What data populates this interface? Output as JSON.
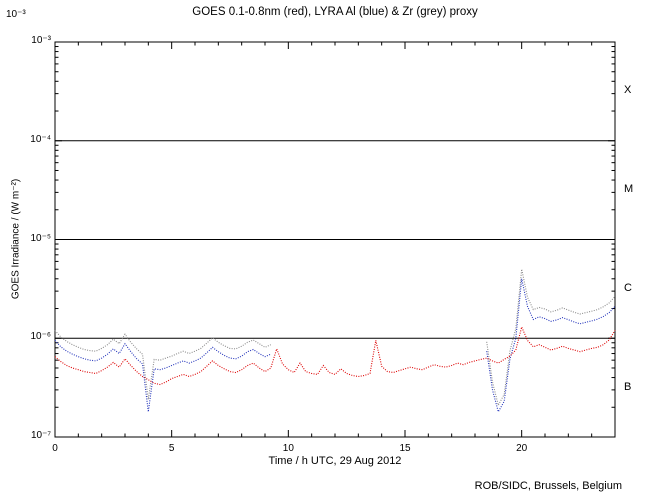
{
  "title": "GOES 0.1-0.8nm (red), LYRA Al (blue) & Zr (grey) proxy",
  "footer": "ROB/SIDC, Brussels, Belgium",
  "axes": {
    "y_label": "GOES Irradiance / (W m⁻²)",
    "stray_top_label": "10⁻³",
    "y_tick_labels": [
      "10⁻³",
      "10⁻⁴",
      "10⁻⁵",
      "10⁻⁶",
      "10⁻⁷"
    ],
    "x_label": "Time / h UTC, 29 Aug 2012",
    "x_ticks": [
      0,
      5,
      10,
      15,
      20
    ],
    "flare_classes": [
      "X",
      "M",
      "C",
      "B"
    ]
  },
  "chart_data": {
    "type": "line",
    "title": "GOES 0.1-0.8nm (red), LYRA Al (blue) & Zr (grey) proxy",
    "xlabel": "Time / h UTC, 29 Aug 2012",
    "ylabel": "GOES Irradiance / (W m⁻²)",
    "x_range_hours": [
      0,
      24
    ],
    "y_range_wm2": [
      1e-07,
      0.001
    ],
    "y_scale": "log",
    "grid": false,
    "class_boundaries_wm2": [
      1e-06,
      1e-05,
      0.0001
    ],
    "class_bands": [
      "B: 1e-7 to 1e-6",
      "C: 1e-6 to 1e-5",
      "M: 1e-5 to 1e-4",
      "X: 1e-4 to 1e-3"
    ],
    "x_step_hours": 0.25,
    "values_unit": "1e-7 W m^-2",
    "series": [
      {
        "name": "LYRA Zr proxy",
        "color": "#8a8a8a",
        "values": [
          12.0,
          10.3,
          9.3,
          8.6,
          8.1,
          7.7,
          7.5,
          7.4,
          7.9,
          8.6,
          9.8,
          8.8,
          11.0,
          9.1,
          7.8,
          6.9,
          2.4,
          6.1,
          6.0,
          6.3,
          6.6,
          7.0,
          7.4,
          7.0,
          7.4,
          7.9,
          8.9,
          10.1,
          9.1,
          8.4,
          7.9,
          7.8,
          8.3,
          9.1,
          9.6,
          8.8,
          8.1,
          8.6,
          null,
          null,
          null,
          null,
          null,
          null,
          null,
          null,
          null,
          null,
          null,
          null,
          null,
          null,
          null,
          null,
          null,
          null,
          null,
          null,
          null,
          null,
          null,
          null,
          null,
          null,
          null,
          null,
          null,
          null,
          null,
          null,
          null,
          null,
          null,
          null,
          9.2,
          3.6,
          2.1,
          2.7,
          7.5,
          12.5,
          50.0,
          26.0,
          19.5,
          20.5,
          19.8,
          18.5,
          19.2,
          20.3,
          19.3,
          18.3,
          17.6,
          18.2,
          18.8,
          19.5,
          20.8,
          22.8,
          26.5
        ]
      },
      {
        "name": "LYRA Al proxy",
        "color": "#2233bb",
        "values": [
          9.5,
          8.2,
          7.4,
          6.9,
          6.5,
          6.2,
          6.0,
          5.9,
          6.3,
          6.9,
          7.8,
          7.0,
          8.8,
          7.3,
          6.2,
          5.5,
          1.8,
          4.9,
          4.8,
          5.0,
          5.3,
          5.6,
          5.9,
          5.6,
          5.9,
          6.3,
          7.1,
          8.1,
          7.3,
          6.7,
          6.3,
          6.2,
          6.6,
          7.3,
          7.7,
          7.0,
          6.5,
          6.9,
          null,
          null,
          null,
          null,
          null,
          null,
          null,
          null,
          null,
          null,
          null,
          null,
          null,
          null,
          null,
          null,
          null,
          null,
          null,
          null,
          null,
          null,
          null,
          null,
          null,
          null,
          null,
          null,
          null,
          null,
          null,
          null,
          null,
          null,
          null,
          null,
          7.4,
          3.0,
          1.8,
          2.3,
          6.2,
          10.0,
          40.0,
          21.0,
          15.5,
          16.5,
          15.8,
          14.8,
          15.3,
          16.2,
          15.4,
          14.6,
          14.0,
          14.5,
          15.0,
          15.6,
          16.6,
          18.2,
          21.0
        ]
      },
      {
        "name": "GOES 0.1-0.8nm",
        "color": "#dd0000",
        "values": [
          6.5,
          5.8,
          5.3,
          5.0,
          4.8,
          4.6,
          4.5,
          4.4,
          4.7,
          5.1,
          5.7,
          5.1,
          6.2,
          5.3,
          4.6,
          4.1,
          3.8,
          3.5,
          3.4,
          3.6,
          3.9,
          4.1,
          4.3,
          4.1,
          4.3,
          4.6,
          5.2,
          5.9,
          5.3,
          4.9,
          4.6,
          4.5,
          4.8,
          5.3,
          5.6,
          5.0,
          4.6,
          5.0,
          7.8,
          5.5,
          4.8,
          4.5,
          5.6,
          4.6,
          4.4,
          4.3,
          5.3,
          4.5,
          4.3,
          4.9,
          4.4,
          4.2,
          4.1,
          4.2,
          4.4,
          9.5,
          5.2,
          4.6,
          4.5,
          4.7,
          4.9,
          5.1,
          4.9,
          4.8,
          5.1,
          5.4,
          5.2,
          5.1,
          5.3,
          5.6,
          5.4,
          5.7,
          5.9,
          6.1,
          6.3,
          5.9,
          5.6,
          6.1,
          6.6,
          7.6,
          13.0,
          9.5,
          8.2,
          8.6,
          8.1,
          7.6,
          7.9,
          8.3,
          7.9,
          7.6,
          7.3,
          7.6,
          7.9,
          8.1,
          8.6,
          9.6,
          12.0
        ]
      }
    ]
  }
}
